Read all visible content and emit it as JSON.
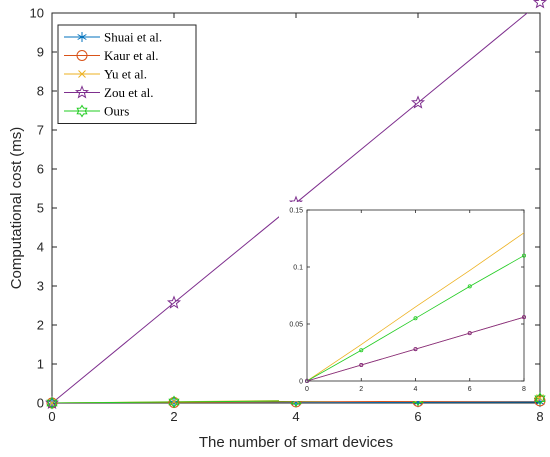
{
  "chart_data": [
    {
      "type": "line",
      "title": "",
      "xlabel": "The number of smart devices",
      "ylabel": "Computational cost (ms)",
      "xlim": [
        0,
        8
      ],
      "ylim": [
        0,
        10
      ],
      "xticks": [
        "0",
        "2",
        "4",
        "6",
        "8"
      ],
      "yticks": [
        "0",
        "1",
        "2",
        "3",
        "4",
        "5",
        "6",
        "7",
        "8",
        "9",
        "10"
      ],
      "grid": false,
      "legend_position": "top-left",
      "x": [
        0,
        2,
        4,
        6,
        8
      ],
      "series": [
        {
          "name": "Shuai et al.",
          "values": [
            0,
            0.006,
            0.012,
            0.018,
            0.024
          ],
          "color": "#0072BD",
          "marker": "asterisk"
        },
        {
          "name": "Kaur et al.",
          "values": [
            0,
            0.014,
            0.028,
            0.042,
            0.056
          ],
          "color": "#D95319",
          "marker": "circle"
        },
        {
          "name": "Yu et al.",
          "values": [
            0,
            0.032,
            0.065,
            0.097,
            0.13
          ],
          "color": "#EDB120",
          "marker": "x"
        },
        {
          "name": "Zou et al.",
          "values": [
            0,
            2.57,
            5.13,
            7.7,
            10.27
          ],
          "color": "#7E2F8E",
          "marker": "pentagram"
        },
        {
          "name": "Ours",
          "values": [
            0,
            0.027,
            0.055,
            0.083,
            0.11
          ],
          "color": "#22CC22",
          "marker": "hexagram"
        }
      ]
    },
    {
      "type": "line",
      "title": "",
      "xlabel": "",
      "ylabel": "",
      "xlim": [
        0,
        8
      ],
      "ylim": [
        0,
        0.15
      ],
      "xticks": [
        "0",
        "2",
        "4",
        "6",
        "8"
      ],
      "yticks": [
        "0",
        "0.05",
        "0.1",
        "0.15"
      ],
      "grid": false,
      "x": [
        0,
        2,
        4,
        6,
        8
      ],
      "series": [
        {
          "values": [
            0,
            0.014,
            0.028,
            0.042,
            0.056
          ],
          "color": "#D95319",
          "marker": "dot"
        },
        {
          "values": [
            0,
            0.032,
            0.065,
            0.097,
            0.13
          ],
          "color": "#EDB120",
          "marker": "none"
        },
        {
          "values": [
            0,
            0.027,
            0.055,
            0.083,
            0.11
          ],
          "color": "#22CC22",
          "marker": "dot"
        },
        {
          "values": [
            0,
            0.014,
            0.028,
            0.042,
            0.056
          ],
          "color": "#7E2F8E",
          "marker": "dot"
        }
      ]
    }
  ]
}
